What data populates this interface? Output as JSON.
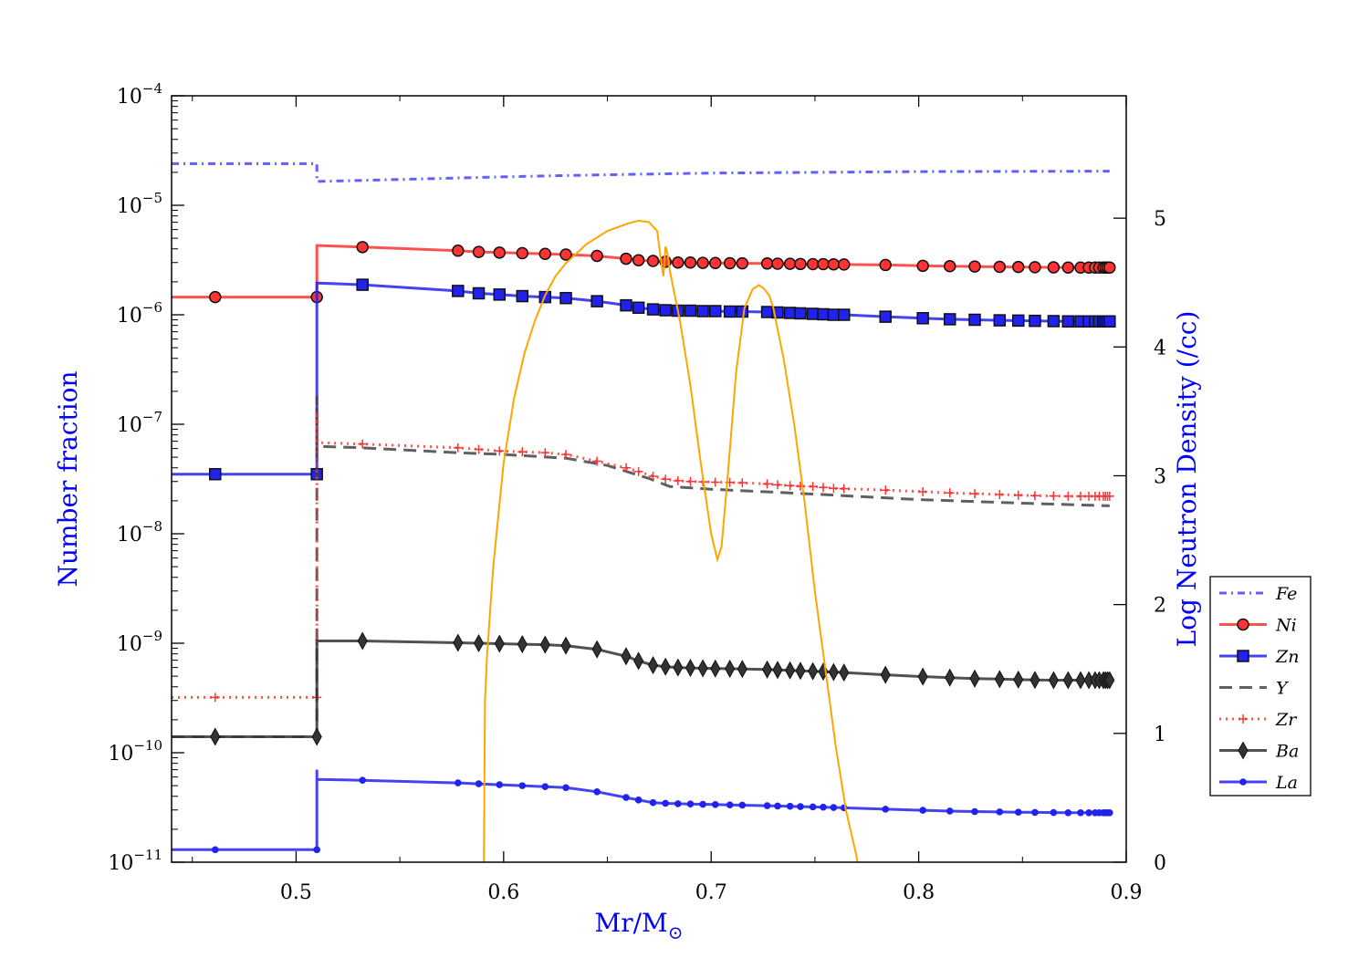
{
  "chart_data": {
    "type": "line",
    "xlabel": "Mr/M",
    "xlabel_sub": "⊙",
    "ylabel_left": "Number fraction",
    "ylabel_right": "Log Neutron Density (/cc)",
    "axis_label_color": "#0000ff",
    "xlim": [
      0.44,
      0.9
    ],
    "ylim_left": [
      1e-11,
      0.0001
    ],
    "yscale_left": "log",
    "ylim_right": [
      0,
      5.95
    ],
    "x_ticks": [
      0.5,
      0.6,
      0.7,
      0.8,
      0.9
    ],
    "x_tick_labels": [
      "0.5",
      "0.6",
      "0.7",
      "0.8",
      "0.9"
    ],
    "y_left_ticks": [
      {
        "base": "10",
        "exp": "−11",
        "value": 1e-11
      },
      {
        "base": "10",
        "exp": "−10",
        "value": 1e-10
      },
      {
        "base": "10",
        "exp": "−9",
        "value": 1e-09
      },
      {
        "base": "10",
        "exp": "−8",
        "value": 1e-08
      },
      {
        "base": "10",
        "exp": "−7",
        "value": 1e-07
      },
      {
        "base": "10",
        "exp": "−6",
        "value": 1e-06
      },
      {
        "base": "10",
        "exp": "−5",
        "value": 1e-05
      },
      {
        "base": "10",
        "exp": "−4",
        "value": 0.0001
      }
    ],
    "y_right_ticks": [
      0,
      1,
      2,
      3,
      4,
      5
    ],
    "y_right_tick_labels": [
      "0",
      "1",
      "2",
      "3",
      "4",
      "5"
    ],
    "legend_position": "center-right",
    "series": [
      {
        "name": "Fe",
        "color": "#4444ff",
        "dash": "dashdot",
        "marker": "none",
        "x": [
          0.44,
          0.51,
          0.51,
          0.55,
          0.6,
          0.65,
          0.7,
          0.8,
          0.892
        ],
        "y": [
          2.4e-05,
          2.4e-05,
          1.65e-05,
          1.72e-05,
          1.82e-05,
          1.9e-05,
          1.97e-05,
          2.03e-05,
          2.05e-05
        ]
      },
      {
        "name": "Ni",
        "color": "#ff3333",
        "dash": "solid",
        "marker": "circle",
        "x": [
          0.44,
          0.461,
          0.51,
          0.51,
          0.532,
          0.578,
          0.588,
          0.598,
          0.609,
          0.62,
          0.63,
          0.645,
          0.659,
          0.665,
          0.672,
          0.678,
          0.684,
          0.69,
          0.696,
          0.702,
          0.709,
          0.715,
          0.727,
          0.732,
          0.738,
          0.743,
          0.749,
          0.754,
          0.759,
          0.764,
          0.784,
          0.802,
          0.815,
          0.827,
          0.839,
          0.848,
          0.856,
          0.865,
          0.872,
          0.878,
          0.882,
          0.885,
          0.887,
          0.889,
          0.89,
          0.891,
          0.892
        ],
        "y": [
          1.45e-06,
          1.45e-06,
          1.45e-06,
          4.3e-06,
          4.15e-06,
          3.85e-06,
          3.75e-06,
          3.7e-06,
          3.65e-06,
          3.6e-06,
          3.55e-06,
          3.45e-06,
          3.25e-06,
          3.15e-06,
          3.1e-06,
          3.05e-06,
          3e-06,
          3e-06,
          2.98e-06,
          2.97e-06,
          2.96e-06,
          2.95e-06,
          2.94e-06,
          2.93e-06,
          2.92e-06,
          2.91e-06,
          2.9e-06,
          2.9e-06,
          2.89e-06,
          2.88e-06,
          2.85e-06,
          2.8e-06,
          2.78e-06,
          2.76e-06,
          2.74e-06,
          2.73e-06,
          2.72e-06,
          2.71e-06,
          2.7e-06,
          2.7e-06,
          2.7e-06,
          2.7e-06,
          2.7e-06,
          2.7e-06,
          2.7e-06,
          2.7e-06,
          2.7e-06
        ]
      },
      {
        "name": "Zn",
        "color": "#2222ee",
        "dash": "solid",
        "marker": "square",
        "x": [
          0.44,
          0.461,
          0.51,
          0.51,
          0.532,
          0.578,
          0.588,
          0.598,
          0.609,
          0.62,
          0.63,
          0.645,
          0.659,
          0.665,
          0.672,
          0.678,
          0.684,
          0.69,
          0.696,
          0.702,
          0.709,
          0.715,
          0.727,
          0.732,
          0.738,
          0.743,
          0.749,
          0.754,
          0.759,
          0.764,
          0.784,
          0.802,
          0.815,
          0.827,
          0.839,
          0.848,
          0.856,
          0.865,
          0.872,
          0.878,
          0.882,
          0.885,
          0.887,
          0.889,
          0.89,
          0.891,
          0.892
        ],
        "y": [
          3.5e-08,
          3.5e-08,
          3.5e-08,
          1.95e-06,
          1.88e-06,
          1.65e-06,
          1.57e-06,
          1.53e-06,
          1.48e-06,
          1.45e-06,
          1.42e-06,
          1.33e-06,
          1.22e-06,
          1.16e-06,
          1.12e-06,
          1.1e-06,
          1.09e-06,
          1.09e-06,
          1.08e-06,
          1.08e-06,
          1.07e-06,
          1.07e-06,
          1.06e-06,
          1.05e-06,
          1.04e-06,
          1.03e-06,
          1.02e-06,
          1.01e-06,
          1e-06,
          1e-06,
          9.6e-07,
          9.3e-07,
          9.1e-07,
          9e-07,
          8.9e-07,
          8.85e-07,
          8.8e-07,
          8.75e-07,
          8.7e-07,
          8.7e-07,
          8.7e-07,
          8.7e-07,
          8.7e-07,
          8.7e-07,
          8.7e-07,
          8.7e-07,
          8.7e-07
        ]
      },
      {
        "name": "Y",
        "color": "#444444",
        "dash": "dashed",
        "marker": "none",
        "x": [
          0.44,
          0.51,
          0.51,
          0.51,
          0.532,
          0.578,
          0.6,
          0.63,
          0.65,
          0.67,
          0.68,
          0.7,
          0.75,
          0.8,
          0.85,
          0.892
        ],
        "y": [
          1.4e-10,
          1.4e-10,
          1.8e-07,
          6.3e-08,
          6.1e-08,
          5.5e-08,
          5.3e-08,
          4.9e-08,
          4.2e-08,
          3.2e-08,
          2.7e-08,
          2.55e-08,
          2.3e-08,
          2.05e-08,
          1.9e-08,
          1.8e-08
        ]
      },
      {
        "name": "Zr",
        "color": "#ff3333",
        "dash": "dotted",
        "marker": "plus",
        "x": [
          0.44,
          0.461,
          0.51,
          0.51,
          0.51,
          0.532,
          0.578,
          0.588,
          0.598,
          0.609,
          0.62,
          0.63,
          0.645,
          0.659,
          0.665,
          0.672,
          0.678,
          0.684,
          0.69,
          0.696,
          0.702,
          0.709,
          0.715,
          0.727,
          0.732,
          0.738,
          0.743,
          0.749,
          0.754,
          0.759,
          0.764,
          0.784,
          0.802,
          0.815,
          0.827,
          0.839,
          0.848,
          0.856,
          0.865,
          0.872,
          0.878,
          0.882,
          0.885,
          0.887,
          0.889,
          0.89,
          0.891,
          0.892
        ],
        "y": [
          3.2e-10,
          3.2e-10,
          3.2e-10,
          1.3e-07,
          6.8e-08,
          6.6e-08,
          6.1e-08,
          5.9e-08,
          5.7e-08,
          5.6e-08,
          5.5e-08,
          5.3e-08,
          4.6e-08,
          4e-08,
          3.7e-08,
          3.35e-08,
          3.15e-08,
          3.05e-08,
          3e-08,
          2.98e-08,
          2.96e-08,
          2.94e-08,
          2.92e-08,
          2.85e-08,
          2.8e-08,
          2.75e-08,
          2.72e-08,
          2.7e-08,
          2.65e-08,
          2.6e-08,
          2.58e-08,
          2.5e-08,
          2.42e-08,
          2.36e-08,
          2.32e-08,
          2.28e-08,
          2.25e-08,
          2.23e-08,
          2.21e-08,
          2.2e-08,
          2.2e-08,
          2.2e-08,
          2.2e-08,
          2.2e-08,
          2.2e-08,
          2.2e-08,
          2.2e-08,
          2.2e-08
        ]
      },
      {
        "name": "Ba",
        "color": "#333333",
        "dash": "solid",
        "marker": "diamond",
        "x": [
          0.44,
          0.461,
          0.51,
          0.51,
          0.532,
          0.578,
          0.588,
          0.598,
          0.609,
          0.62,
          0.63,
          0.645,
          0.659,
          0.665,
          0.672,
          0.678,
          0.684,
          0.69,
          0.696,
          0.702,
          0.709,
          0.715,
          0.727,
          0.732,
          0.738,
          0.743,
          0.749,
          0.754,
          0.759,
          0.764,
          0.784,
          0.802,
          0.815,
          0.827,
          0.839,
          0.848,
          0.856,
          0.865,
          0.872,
          0.878,
          0.882,
          0.885,
          0.887,
          0.889,
          0.89,
          0.891,
          0.892
        ],
        "y": [
          1.4e-10,
          1.4e-10,
          1.4e-10,
          1.05e-09,
          1.05e-09,
          1.01e-09,
          1e-09,
          9.9e-10,
          9.8e-10,
          9.7e-10,
          9.5e-10,
          8.8e-10,
          7.6e-10,
          6.9e-10,
          6.3e-10,
          6.1e-10,
          6e-10,
          5.95e-10,
          5.9e-10,
          5.87e-10,
          5.85e-10,
          5.82e-10,
          5.75e-10,
          5.7e-10,
          5.65e-10,
          5.6e-10,
          5.55e-10,
          5.5e-10,
          5.45e-10,
          5.4e-10,
          5.15e-10,
          4.95e-10,
          4.85e-10,
          4.75e-10,
          4.7e-10,
          4.65e-10,
          4.62e-10,
          4.6e-10,
          4.6e-10,
          4.6e-10,
          4.6e-10,
          4.6e-10,
          4.6e-10,
          4.6e-10,
          4.6e-10,
          4.6e-10,
          4.6e-10
        ]
      },
      {
        "name": "La",
        "color": "#2222ee",
        "dash": "solid",
        "marker": "dot",
        "x": [
          0.44,
          0.461,
          0.51,
          0.51,
          0.51,
          0.532,
          0.578,
          0.588,
          0.598,
          0.609,
          0.62,
          0.63,
          0.645,
          0.659,
          0.665,
          0.672,
          0.678,
          0.684,
          0.69,
          0.696,
          0.702,
          0.709,
          0.715,
          0.727,
          0.732,
          0.738,
          0.743,
          0.749,
          0.754,
          0.759,
          0.764,
          0.784,
          0.802,
          0.815,
          0.827,
          0.839,
          0.848,
          0.856,
          0.865,
          0.872,
          0.878,
          0.882,
          0.885,
          0.887,
          0.889,
          0.89,
          0.891,
          0.892
        ],
        "y": [
          1.3e-11,
          1.3e-11,
          1.3e-11,
          7e-11,
          5.7e-11,
          5.6e-11,
          5.3e-11,
          5.2e-11,
          5.1e-11,
          5e-11,
          4.9e-11,
          4.8e-11,
          4.4e-11,
          3.9e-11,
          3.7e-11,
          3.5e-11,
          3.45e-11,
          3.42e-11,
          3.4e-11,
          3.38e-11,
          3.36e-11,
          3.34e-11,
          3.32e-11,
          3.28e-11,
          3.26e-11,
          3.24e-11,
          3.22e-11,
          3.2e-11,
          3.18e-11,
          3.16e-11,
          3.14e-11,
          3.05e-11,
          2.98e-11,
          2.93e-11,
          2.9e-11,
          2.88e-11,
          2.86e-11,
          2.85e-11,
          2.84e-11,
          2.83e-11,
          2.83e-11,
          2.83e-11,
          2.83e-11,
          2.83e-11,
          2.83e-11,
          2.83e-11,
          2.83e-11,
          2.83e-11
        ]
      }
    ],
    "neutron_density": {
      "axis": "right",
      "color": "#ffa500",
      "x": [
        0.5905,
        0.591,
        0.592,
        0.595,
        0.6,
        0.605,
        0.61,
        0.615,
        0.62,
        0.625,
        0.63,
        0.64,
        0.65,
        0.66,
        0.665,
        0.67,
        0.674,
        0.676,
        0.677,
        0.678,
        0.679,
        0.68,
        0.685,
        0.69,
        0.695,
        0.7,
        0.703,
        0.705,
        0.708,
        0.712,
        0.716,
        0.72,
        0.723,
        0.725,
        0.728,
        0.73,
        0.735,
        0.74,
        0.745,
        0.75,
        0.755,
        0.76,
        0.765,
        0.77,
        0.7705
      ],
      "y": [
        0.0,
        1.25,
        1.6,
        2.3,
        3.1,
        3.6,
        3.95,
        4.2,
        4.4,
        4.55,
        4.65,
        4.8,
        4.9,
        4.96,
        4.98,
        4.97,
        4.9,
        4.65,
        4.55,
        4.78,
        4.72,
        4.6,
        4.2,
        3.7,
        3.1,
        2.55,
        2.35,
        2.45,
        3.0,
        3.8,
        4.3,
        4.45,
        4.48,
        4.46,
        4.4,
        4.3,
        3.9,
        3.4,
        2.8,
        2.1,
        1.5,
        0.9,
        0.4,
        0.05,
        0.0
      ]
    }
  }
}
